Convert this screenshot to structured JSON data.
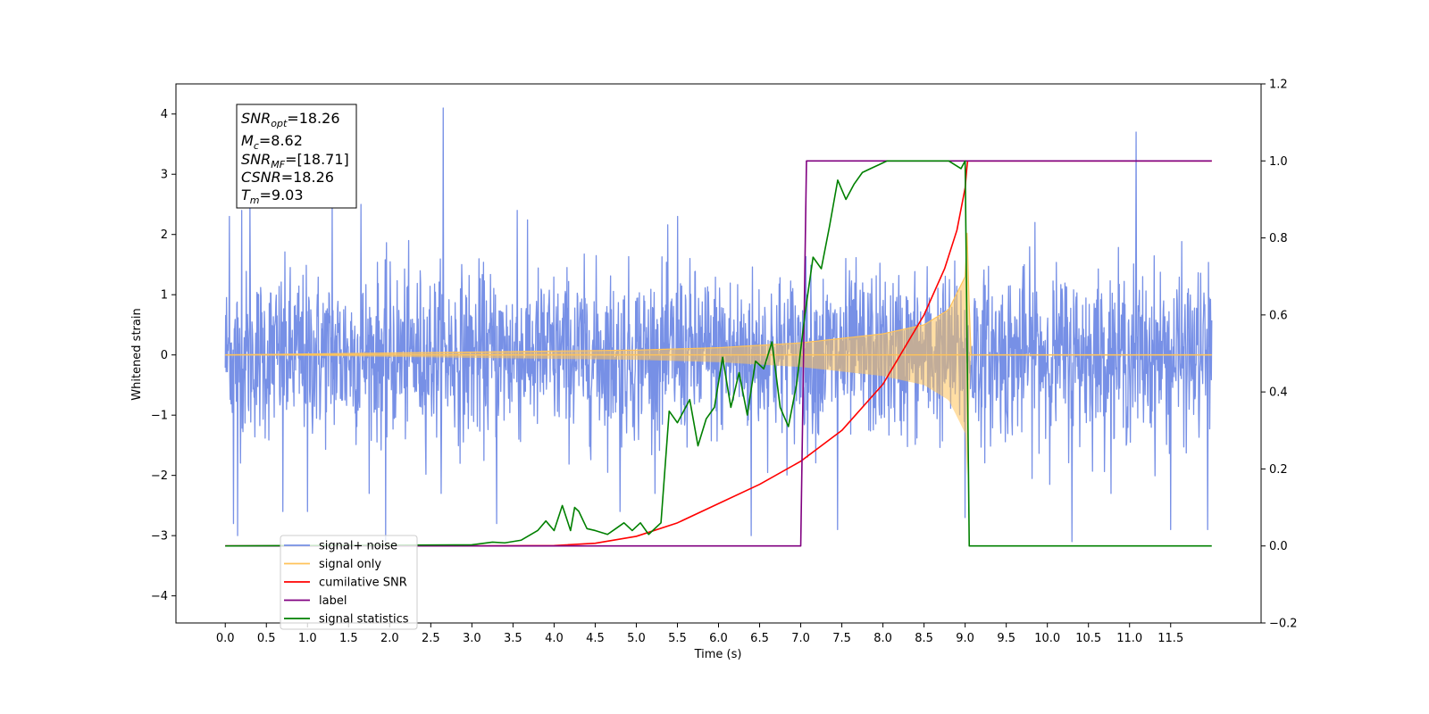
{
  "chart_data": {
    "type": "line",
    "title": "",
    "xlabel": "Time (s)",
    "ylabel": "Whitened strain",
    "y2label": "",
    "xlim": [
      -0.6,
      12.6
    ],
    "ylim": [
      -4.45,
      4.5
    ],
    "y2lim": [
      -0.2,
      1.2
    ],
    "x_ticks": [
      0.0,
      0.5,
      1.0,
      1.5,
      2.0,
      2.5,
      3.0,
      3.5,
      4.0,
      4.5,
      5.0,
      5.5,
      6.0,
      6.5,
      7.0,
      7.5,
      8.0,
      8.5,
      9.0,
      9.5,
      10.0,
      10.5,
      11.0,
      11.5
    ],
    "x_tick_labels": [
      "0.0",
      "0.5",
      "1.0",
      "1.5",
      "2.0",
      "2.5",
      "3.0",
      "3.5",
      "4.0",
      "4.5",
      "5.0",
      "5.5",
      "6.0",
      "6.5",
      "7.0",
      "7.5",
      "8.0",
      "8.5",
      "9.0",
      "9.5",
      "10.0",
      "10.5",
      "11.0",
      "11.5"
    ],
    "y_ticks": [
      -4,
      -3,
      -2,
      -1,
      0,
      1,
      2,
      3,
      4
    ],
    "y_tick_labels": [
      "−4",
      "−3",
      "−2",
      "−1",
      "0",
      "1",
      "2",
      "3",
      "4"
    ],
    "y2_ticks": [
      -0.2,
      0.0,
      0.2,
      0.4,
      0.6,
      0.8,
      1.0,
      1.2
    ],
    "y2_tick_labels": [
      "−0.2",
      "0.0",
      "0.2",
      "0.4",
      "0.6",
      "0.8",
      "1.0",
      "1.2"
    ],
    "grid": false,
    "legend_position": "lower-left",
    "legend": [
      {
        "label": "signal+ noise",
        "color": "#7790e6"
      },
      {
        "label": "signal only",
        "color": "#ffc35a"
      },
      {
        "label": "cumilative SNR",
        "color": "#ff0000"
      },
      {
        "label": "label",
        "color": "#800080"
      },
      {
        "label": "signal statistics",
        "color": "#008000"
      }
    ],
    "annotation": {
      "lines": [
        {
          "base": "SNR",
          "sub": "opt",
          "value": "=18.26"
        },
        {
          "base": "M",
          "sub": "c",
          "value": "=8.62"
        },
        {
          "base": "SNR",
          "sub": "MF",
          "value": "=[18.71]"
        },
        {
          "base": "CSNR",
          "sub": "",
          "value": "=18.26"
        },
        {
          "base": "T",
          "sub": "m",
          "value": "=9.03"
        }
      ]
    },
    "series": [
      {
        "name": "signal+ noise",
        "axis": "left",
        "color": "#7790e6",
        "kind": "noise_band",
        "x_range": [
          0.0,
          12.0
        ],
        "typical_upper": 1.3,
        "typical_lower": -1.3,
        "spikes": [
          [
            0.05,
            2.3
          ],
          [
            0.2,
            2.4
          ],
          [
            0.3,
            2.5
          ],
          [
            1.3,
            2.6
          ],
          [
            1.65,
            2.5
          ],
          [
            2.65,
            4.1
          ],
          [
            3.55,
            2.4
          ],
          [
            5.5,
            2.3
          ],
          [
            9.85,
            2.2
          ],
          [
            11.08,
            3.7
          ],
          [
            11.5,
            2.2
          ],
          [
            0.1,
            -2.8
          ],
          [
            0.15,
            -3.0
          ],
          [
            0.7,
            -2.6
          ],
          [
            1.0,
            -2.6
          ],
          [
            1.95,
            -3.1
          ],
          [
            3.3,
            -2.8
          ],
          [
            4.8,
            -2.6
          ],
          [
            6.4,
            -3.0
          ],
          [
            7.45,
            -2.9
          ],
          [
            9.0,
            -2.7
          ],
          [
            10.3,
            -3.1
          ],
          [
            11.5,
            -2.9
          ],
          [
            11.95,
            -2.9
          ]
        ]
      },
      {
        "name": "signal only",
        "axis": "left",
        "color": "#ffc35a",
        "kind": "chirp_envelope",
        "x_range": [
          0.0,
          12.0
        ],
        "merger_time": 9.03,
        "amplitude_points": [
          [
            0.0,
            0.0
          ],
          [
            5.0,
            0.08
          ],
          [
            6.0,
            0.12
          ],
          [
            7.0,
            0.2
          ],
          [
            8.0,
            0.35
          ],
          [
            8.5,
            0.5
          ],
          [
            8.8,
            0.75
          ],
          [
            9.0,
            1.3
          ],
          [
            9.03,
            2.2
          ],
          [
            9.06,
            0.0
          ],
          [
            12.0,
            0.0
          ]
        ]
      },
      {
        "name": "cumilative SNR",
        "axis": "right",
        "color": "#ff0000",
        "x": [
          0.0,
          3.0,
          4.0,
          4.5,
          5.0,
          5.5,
          6.0,
          6.5,
          7.0,
          7.5,
          8.0,
          8.5,
          8.75,
          8.9,
          9.0,
          9.02,
          9.03,
          12.0
        ],
        "values": [
          0.0,
          0.0,
          0.001,
          0.007,
          0.025,
          0.06,
          0.11,
          0.16,
          0.22,
          0.3,
          0.42,
          0.6,
          0.72,
          0.82,
          0.93,
          0.98,
          1.0,
          1.0
        ]
      },
      {
        "name": "label",
        "axis": "right",
        "color": "#800080",
        "x": [
          0.0,
          7.0,
          7.07,
          9.0,
          9.03,
          12.0
        ],
        "values": [
          0.0,
          0.0,
          1.0,
          1.0,
          1.0,
          1.0
        ]
      },
      {
        "name": "signal statistics",
        "axis": "right",
        "color": "#008000",
        "x": [
          0.0,
          3.0,
          3.25,
          3.4,
          3.6,
          3.8,
          3.9,
          4.0,
          4.1,
          4.2,
          4.25,
          4.3,
          4.4,
          4.5,
          4.65,
          4.75,
          4.85,
          4.95,
          5.05,
          5.15,
          5.3,
          5.4,
          5.5,
          5.65,
          5.75,
          5.85,
          5.95,
          6.05,
          6.15,
          6.25,
          6.35,
          6.45,
          6.55,
          6.65,
          6.75,
          6.85,
          6.95,
          7.05,
          7.15,
          7.25,
          7.35,
          7.45,
          7.55,
          7.65,
          7.75,
          7.85,
          7.95,
          8.05,
          8.2,
          8.4,
          8.6,
          8.8,
          8.95,
          9.0,
          9.05,
          12.0
        ],
        "values": [
          0.0,
          0.003,
          0.01,
          0.008,
          0.015,
          0.04,
          0.065,
          0.04,
          0.105,
          0.04,
          0.1,
          0.09,
          0.045,
          0.04,
          0.03,
          0.045,
          0.06,
          0.04,
          0.06,
          0.03,
          0.06,
          0.35,
          0.32,
          0.38,
          0.26,
          0.33,
          0.36,
          0.49,
          0.36,
          0.45,
          0.34,
          0.48,
          0.46,
          0.53,
          0.36,
          0.31,
          0.42,
          0.6,
          0.75,
          0.72,
          0.83,
          0.95,
          0.9,
          0.94,
          0.97,
          0.98,
          0.99,
          1.0,
          1.0,
          1.0,
          1.0,
          1.0,
          0.98,
          1.0,
          0.0,
          0.0
        ]
      }
    ]
  }
}
